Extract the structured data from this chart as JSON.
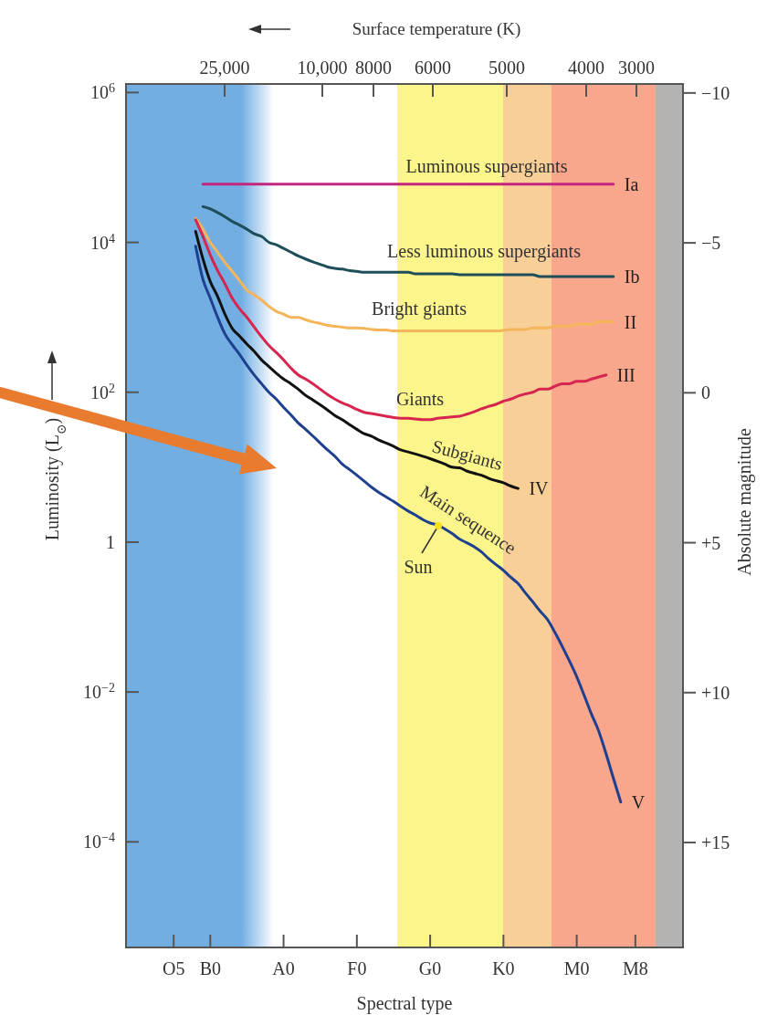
{
  "chart_data": {
    "type": "line",
    "xlabel": "Spectral type",
    "ylabel": "Luminosity (L$_{⊙}$)",
    "y2label": "Absolute magnitude",
    "log": true,
    "categories": [
      null,
      null,
      null,
      null,
      null,
      null,
      "O5",
      null,
      null,
      null,
      null,
      "B0",
      null,
      null,
      null,
      null,
      null,
      null,
      null,
      null,
      null,
      "A0",
      null,
      null,
      null,
      null,
      null,
      null,
      null,
      null,
      null,
      "F0",
      null,
      null,
      null,
      null,
      null,
      null,
      null,
      null,
      null,
      "G0",
      null,
      null,
      null,
      null,
      null,
      null,
      null,
      null,
      null,
      "K0",
      null,
      null,
      null,
      null,
      null,
      null,
      null,
      null,
      null,
      "M0",
      null,
      null,
      null,
      null,
      null,
      null,
      null,
      "M8",
      null,
      null,
      null,
      null,
      null,
      null
    ],
    "ylim": [
      3.9e-06,
      1300000
    ],
    "yticks": [
      {
        "value": 1000000,
        "label": "10$^{6}$"
      },
      {
        "value": 10000,
        "label": "10$^{4}$"
      },
      {
        "value": 100,
        "label": "10$^{2}$"
      },
      1,
      {
        "value": 0.01,
        "label": "10$^{−2}$"
      },
      {
        "value": 0.0001,
        "label": "10$^{−4}$"
      }
    ],
    "y2lim": [
      18.5,
      -10.3
    ],
    "y2ticks": [
      {
        "value": -10,
        "label": "−10"
      },
      {
        "value": -5,
        "label": "−5"
      },
      0,
      {
        "value": 5,
        "label": "+5"
      },
      {
        "value": 10,
        "label": "+10"
      },
      {
        "value": 15,
        "label": "+15"
      }
    ],
    "series": [
      {
        "name": "Ia",
        "color": "#c2267e",
        "values": [
          null,
          null,
          null,
          null,
          null,
          null,
          null,
          null,
          null,
          null,
          60000,
          60000,
          60000,
          60000,
          60000,
          60000,
          60000,
          60000,
          60000,
          60000,
          60000,
          60000,
          60000,
          60000,
          60000,
          60000,
          60000,
          60000,
          60000,
          60000,
          60000,
          60000,
          60000,
          60000,
          60000,
          60000,
          60000,
          60000,
          60000,
          60000,
          60000,
          60000,
          60000,
          60000,
          60000,
          60000,
          60000,
          60000,
          60000,
          60000,
          60000,
          60000,
          60000,
          60000,
          60000,
          60000,
          60000,
          60000,
          60000,
          60000,
          60000,
          60000,
          60000,
          60000,
          60000,
          60000,
          60000,
          null,
          null,
          null,
          null,
          null,
          null,
          null,
          null,
          null
        ]
      },
      {
        "name": "Ib",
        "color": "#1d4e5a",
        "values": [
          null,
          null,
          null,
          null,
          null,
          null,
          null,
          null,
          null,
          null,
          30000,
          28000,
          25000,
          22000,
          19000,
          17000,
          15000,
          13000,
          12000,
          10000,
          9300,
          8300,
          7400,
          6600,
          6000,
          5500,
          5100,
          4700,
          4500,
          4400,
          4200,
          4100,
          4000,
          4000,
          4000,
          4000,
          4000,
          4000,
          4000,
          3800,
          3800,
          3800,
          3800,
          3800,
          3800,
          3700,
          3700,
          3700,
          3700,
          3700,
          3700,
          3700,
          3700,
          3700,
          3700,
          3700,
          3500,
          3500,
          3500,
          3500,
          3500,
          3500,
          3500,
          3500,
          3500,
          3500,
          3500,
          null,
          null,
          null,
          null,
          null,
          null,
          null,
          null,
          null
        ]
      },
      {
        "name": "II",
        "color": "#f5b55a",
        "values": [
          null,
          null,
          null,
          null,
          null,
          null,
          null,
          null,
          null,
          21000,
          15000,
          10000,
          7400,
          5400,
          4100,
          3100,
          2300,
          2000,
          1700,
          1400,
          1200,
          1100,
          1000,
          1000,
          930,
          870,
          830,
          780,
          760,
          740,
          720,
          720,
          710,
          690,
          680,
          680,
          660,
          660,
          660,
          660,
          660,
          660,
          660,
          660,
          660,
          660,
          660,
          660,
          660,
          660,
          660,
          670,
          690,
          690,
          690,
          720,
          720,
          720,
          760,
          760,
          760,
          810,
          810,
          810,
          870,
          870,
          870,
          null,
          null,
          null,
          null,
          null,
          null,
          null,
          null,
          null
        ]
      },
      {
        "name": "III",
        "color": "#d6254f",
        "values": [
          null,
          null,
          null,
          null,
          null,
          null,
          null,
          null,
          null,
          20000,
          12000,
          6800,
          4200,
          2800,
          1800,
          1300,
          1000,
          740,
          550,
          420,
          340,
          270,
          210,
          170,
          150,
          130,
          110,
          93,
          81,
          72,
          66,
          59,
          54,
          52,
          50,
          48,
          46,
          45,
          45,
          44,
          43,
          43,
          45,
          46,
          47,
          48,
          51,
          55,
          60,
          65,
          69,
          76,
          81,
          89,
          95,
          100,
          110,
          110,
          120,
          130,
          130,
          140,
          140,
          150,
          160,
          170,
          null,
          null,
          null,
          null,
          null,
          null,
          null,
          null,
          null,
          null
        ]
      },
      {
        "name": "IV",
        "color": "#111111",
        "values": [
          null,
          null,
          null,
          null,
          null,
          null,
          null,
          null,
          null,
          14000,
          6000,
          3000,
          1900,
          1100,
          710,
          560,
          440,
          350,
          270,
          220,
          180,
          150,
          130,
          110,
          91,
          79,
          68,
          58,
          49,
          43,
          37,
          32,
          28,
          26,
          23,
          21,
          19,
          17,
          16,
          15,
          14,
          13,
          12,
          11,
          10,
          9.8,
          8.9,
          8.3,
          7.8,
          7.1,
          6.6,
          6.2,
          5.6,
          5.2,
          null,
          null,
          null,
          null,
          null,
          null,
          null,
          null,
          null,
          null,
          null,
          null,
          null,
          null,
          null,
          null,
          null,
          null,
          null,
          null,
          null,
          null
        ]
      },
      {
        "name": "V",
        "color": "#1f3f8f",
        "values": [
          null,
          null,
          null,
          null,
          null,
          null,
          null,
          null,
          null,
          8900,
          3200,
          1800,
          1000,
          600,
          430,
          320,
          230,
          170,
          130,
          100,
          81,
          63,
          50,
          39,
          32,
          26,
          21,
          17,
          14,
          11,
          9.3,
          7.8,
          6.5,
          5.4,
          4.6,
          4.0,
          3.5,
          3.0,
          2.6,
          2.3,
          2.0,
          1.8,
          1.7,
          1.5,
          1.3,
          1.1,
          0.98,
          0.87,
          0.74,
          0.6,
          0.5,
          0.42,
          0.34,
          0.28,
          0.21,
          0.16,
          0.12,
          0.093,
          0.063,
          0.041,
          0.026,
          0.016,
          0.0091,
          0.0051,
          0.003,
          0.0015,
          0.00071,
          0.00034,
          null,
          null,
          null,
          null,
          null,
          null,
          null,
          null
        ]
      }
    ],
    "annotations": [
      "Surface temperature (K)",
      "25,000",
      "10,000",
      "8000",
      "6000",
      "5000",
      "4000",
      "3000",
      "Luminous supergiants",
      "Less luminous supergiants",
      "Bright giants",
      "Giants",
      "Subgiants",
      "Main sequence",
      "Sun"
    ]
  }
}
